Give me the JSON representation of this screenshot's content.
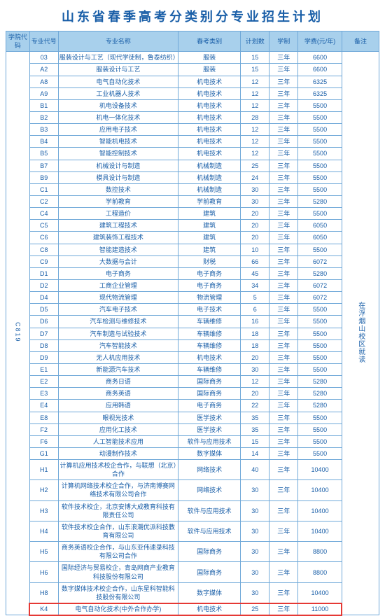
{
  "title": "山东省春季高考分类别分专业招生计划",
  "headers": {
    "school_code": "学院代码",
    "major_code": "专业代号",
    "major_name": "专业名称",
    "category": "春考类别",
    "plan": "计划数",
    "length": "学制",
    "fee": "学费(元/年)",
    "note": "备注"
  },
  "school_code": "C819",
  "note_text": "在浮烟山校区就读",
  "rows": [
    {
      "code": "03",
      "name": "服装设计与工艺（现代学徒制，鲁泰纺织）",
      "cat": "服装",
      "plan": "15",
      "len": "三年",
      "fee": "6600"
    },
    {
      "code": "A2",
      "name": "服装设计与工艺",
      "cat": "服装",
      "plan": "15",
      "len": "三年",
      "fee": "6600"
    },
    {
      "code": "A8",
      "name": "电气自动化技术",
      "cat": "机电技术",
      "plan": "12",
      "len": "三年",
      "fee": "6325"
    },
    {
      "code": "A9",
      "name": "工业机器人技术",
      "cat": "机电技术",
      "plan": "12",
      "len": "三年",
      "fee": "6325"
    },
    {
      "code": "B1",
      "name": "机电设备技术",
      "cat": "机电技术",
      "plan": "12",
      "len": "三年",
      "fee": "5500"
    },
    {
      "code": "B2",
      "name": "机电一体化技术",
      "cat": "机电技术",
      "plan": "28",
      "len": "三年",
      "fee": "5500"
    },
    {
      "code": "B3",
      "name": "应用电子技术",
      "cat": "机电技术",
      "plan": "12",
      "len": "三年",
      "fee": "5500"
    },
    {
      "code": "B4",
      "name": "智能机电技术",
      "cat": "机电技术",
      "plan": "12",
      "len": "三年",
      "fee": "5500"
    },
    {
      "code": "B5",
      "name": "智能控制技术",
      "cat": "机电技术",
      "plan": "12",
      "len": "三年",
      "fee": "5500"
    },
    {
      "code": "B7",
      "name": "机械设计与制造",
      "cat": "机械制造",
      "plan": "25",
      "len": "三年",
      "fee": "5500"
    },
    {
      "code": "B9",
      "name": "模具设计与制造",
      "cat": "机械制造",
      "plan": "24",
      "len": "三年",
      "fee": "5500"
    },
    {
      "code": "C1",
      "name": "数控技术",
      "cat": "机械制造",
      "plan": "30",
      "len": "三年",
      "fee": "5500"
    },
    {
      "code": "C2",
      "name": "学前教育",
      "cat": "学前教育",
      "plan": "30",
      "len": "三年",
      "fee": "5280"
    },
    {
      "code": "C4",
      "name": "工程造价",
      "cat": "建筑",
      "plan": "20",
      "len": "三年",
      "fee": "5500"
    },
    {
      "code": "C5",
      "name": "建筑工程技术",
      "cat": "建筑",
      "plan": "20",
      "len": "三年",
      "fee": "6050"
    },
    {
      "code": "C6",
      "name": "建筑装饰工程技术",
      "cat": "建筑",
      "plan": "20",
      "len": "三年",
      "fee": "6050"
    },
    {
      "code": "C8",
      "name": "智能建造技术",
      "cat": "建筑",
      "plan": "10",
      "len": "三年",
      "fee": "5500"
    },
    {
      "code": "C9",
      "name": "大数据与会计",
      "cat": "财税",
      "plan": "66",
      "len": "三年",
      "fee": "6072"
    },
    {
      "code": "D1",
      "name": "电子商务",
      "cat": "电子商务",
      "plan": "45",
      "len": "三年",
      "fee": "5280"
    },
    {
      "code": "D2",
      "name": "工商企业管理",
      "cat": "电子商务",
      "plan": "34",
      "len": "三年",
      "fee": "6072"
    },
    {
      "code": "D4",
      "name": "现代物流管理",
      "cat": "物流管理",
      "plan": "5",
      "len": "三年",
      "fee": "6072"
    },
    {
      "code": "D5",
      "name": "汽车电子技术",
      "cat": "电子技术",
      "plan": "6",
      "len": "三年",
      "fee": "5500"
    },
    {
      "code": "D6",
      "name": "汽车检测与维修技术",
      "cat": "车辆维修",
      "plan": "16",
      "len": "三年",
      "fee": "5500"
    },
    {
      "code": "D7",
      "name": "汽车制造与试验技术",
      "cat": "车辆维修",
      "plan": "18",
      "len": "三年",
      "fee": "5500"
    },
    {
      "code": "D8",
      "name": "汽车智能技术",
      "cat": "车辆维修",
      "plan": "18",
      "len": "三年",
      "fee": "5500"
    },
    {
      "code": "D9",
      "name": "无人机应用技术",
      "cat": "机电技术",
      "plan": "20",
      "len": "三年",
      "fee": "5500"
    },
    {
      "code": "E1",
      "name": "新能源汽车技术",
      "cat": "车辆维修",
      "plan": "30",
      "len": "三年",
      "fee": "5500"
    },
    {
      "code": "E2",
      "name": "商务日语",
      "cat": "国际商务",
      "plan": "12",
      "len": "三年",
      "fee": "5280"
    },
    {
      "code": "E3",
      "name": "商务英语",
      "cat": "国际商务",
      "plan": "20",
      "len": "三年",
      "fee": "5280"
    },
    {
      "code": "E4",
      "name": "应用韩语",
      "cat": "电子商务",
      "plan": "22",
      "len": "三年",
      "fee": "5280"
    },
    {
      "code": "E8",
      "name": "眼视光技术",
      "cat": "医学技术",
      "plan": "35",
      "len": "三年",
      "fee": "5500"
    },
    {
      "code": "F2",
      "name": "应用化工技术",
      "cat": "医学技术",
      "plan": "35",
      "len": "三年",
      "fee": "5500"
    },
    {
      "code": "F6",
      "name": "人工智能技术应用",
      "cat": "软件与应用技术",
      "plan": "15",
      "len": "三年",
      "fee": "5500"
    },
    {
      "code": "G1",
      "name": "动漫制作技术",
      "cat": "数字媒体",
      "plan": "14",
      "len": "三年",
      "fee": "5500"
    },
    {
      "code": "H1",
      "name": "计算机应用技术校企合作，与联想（北京）合作",
      "cat": "网络技术",
      "plan": "40",
      "len": "三年",
      "fee": "10400"
    },
    {
      "code": "H2",
      "name": "计算机网络技术校企合作，与济南博赛网络技术有限公司合作",
      "cat": "网络技术",
      "plan": "30",
      "len": "三年",
      "fee": "10400"
    },
    {
      "code": "H3",
      "name": "软件技术校企，北京安博大成教育科技有限责任公司",
      "cat": "软件与应用技术",
      "plan": "30",
      "len": "三年",
      "fee": "10400"
    },
    {
      "code": "H4",
      "name": "软件技术校企合作，山东浪潮优派科技教育有限公司",
      "cat": "软件与应用技术",
      "plan": "30",
      "len": "三年",
      "fee": "10400"
    },
    {
      "code": "H5",
      "name": "商务英语校企合作，与山东亚伟速录科技有限公司合作",
      "cat": "国际商务",
      "plan": "30",
      "len": "三年",
      "fee": "8800"
    },
    {
      "code": "H6",
      "name": "国际经济与贸易校企，青岛网商产业教育科技股份有限公司",
      "cat": "国际商务",
      "plan": "30",
      "len": "三年",
      "fee": "8800"
    },
    {
      "code": "H8",
      "name": "数字媒体技术校企合作，山东星科智能科技股份有限公司",
      "cat": "数字媒体",
      "plan": "30",
      "len": "三年",
      "fee": "10400"
    },
    {
      "code": "K4",
      "name": "电气自动化技术(中外合作办学)",
      "cat": "机电技术",
      "plan": "25",
      "len": "三年",
      "fee": "11000"
    }
  ],
  "highlight_row_code": "K4",
  "colors": {
    "border": "#6fa8d8",
    "header_bg": "#a8d0ec",
    "text": "#1a5fa8",
    "highlight": "#e53935",
    "bg": "#ffffff"
  }
}
